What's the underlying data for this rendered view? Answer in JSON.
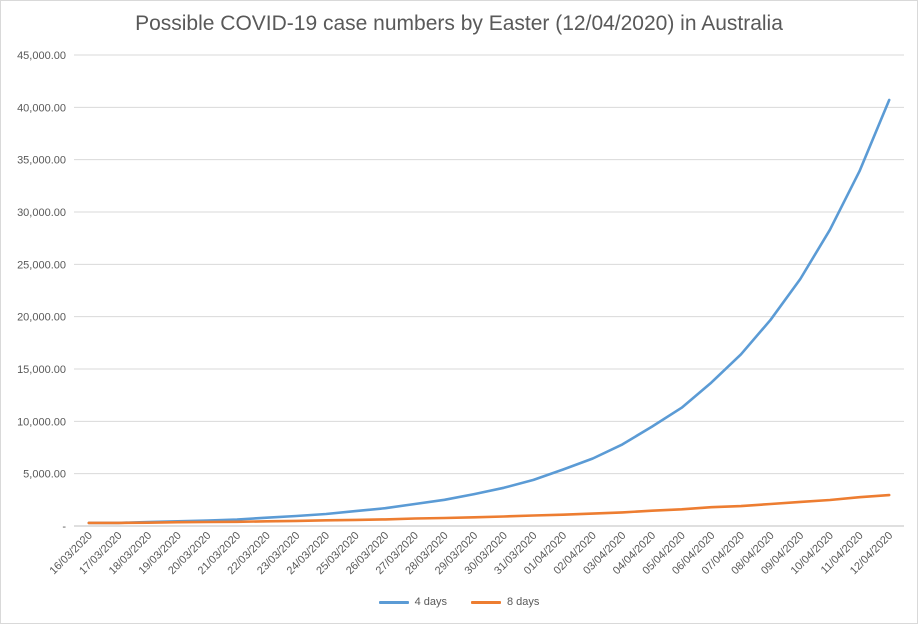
{
  "chart_data": {
    "type": "line",
    "title": "Possible COVID-19 case numbers by Easter (12/04/2020)  in Australia",
    "xlabel": "",
    "ylabel": "",
    "ylim": [
      0,
      45000
    ],
    "yticks": [
      0,
      5000,
      10000,
      15000,
      20000,
      25000,
      30000,
      35000,
      40000,
      45000
    ],
    "ytick_labels": [
      "-",
      "5,000.00",
      "10,000.00",
      "15,000.00",
      "20,000.00",
      "25,000.00",
      "30,000.00",
      "35,000.00",
      "40,000.00",
      "45,000.00"
    ],
    "grid": true,
    "legend_position": "bottom",
    "categories": [
      "16/03/2020",
      "17/03/2020",
      "18/03/2020",
      "19/03/2020",
      "20/03/2020",
      "21/03/2020",
      "22/03/2020",
      "23/03/2020",
      "24/03/2020",
      "25/03/2020",
      "26/03/2020",
      "27/03/2020",
      "28/03/2020",
      "29/03/2020",
      "30/03/2020",
      "31/03/2020",
      "01/04/2020",
      "02/04/2020",
      "03/04/2020",
      "04/04/2020",
      "05/04/2020",
      "06/04/2020",
      "07/04/2020",
      "08/04/2020",
      "09/04/2020",
      "10/04/2020",
      "11/04/2020",
      "12/04/2020"
    ],
    "series": [
      {
        "name": "4 days",
        "color": "#5b9bd5",
        "values": [
          300,
          300,
          380,
          450,
          530,
          620,
          790,
          960,
          1150,
          1420,
          1700,
          2100,
          2500,
          3050,
          3650,
          4400,
          5400,
          6450,
          7800,
          9500,
          11300,
          13700,
          16400,
          19700,
          23600,
          28300,
          33900,
          40700
        ]
      },
      {
        "name": "8 days",
        "color": "#ed7d31",
        "values": [
          300,
          300,
          320,
          360,
          380,
          400,
          450,
          490,
          540,
          580,
          630,
          720,
          760,
          830,
          910,
          1000,
          1080,
          1180,
          1300,
          1460,
          1600,
          1800,
          1900,
          2100,
          2300,
          2480,
          2750,
          2950
        ]
      }
    ]
  }
}
